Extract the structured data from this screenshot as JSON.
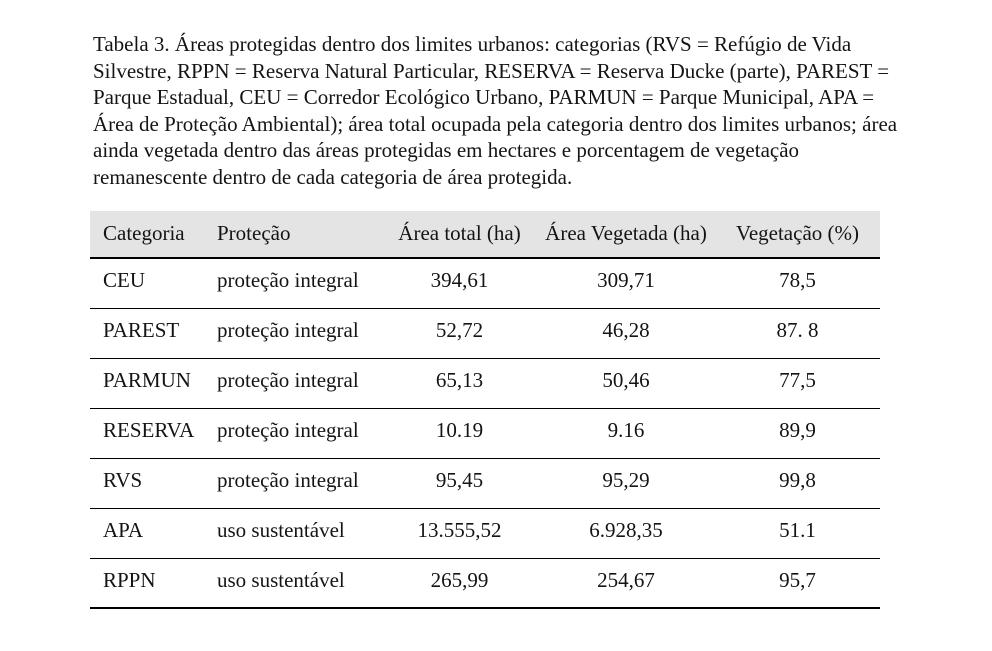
{
  "document": {
    "caption": "Tabela 3. Áreas protegidas dentro dos limites urbanos: categorias (RVS = Refúgio de Vida Silvestre, RPPN = Reserva Natural Particular, RESERVA = Reserva Ducke (parte), PAREST = Parque Estadual, CEU = Corredor Ecológico Urbano, PARMUN = Parque Municipal, APA = Área de Proteção Ambiental); área total ocupada pela categoria dentro dos limites urbanos; área ainda vegetada dentro das áreas protegidas em hectares e porcentagem de vegetação remanescente dentro de cada categoria de área protegida."
  },
  "table": {
    "headers": [
      "Categoria",
      "Proteção",
      "Área total (ha)",
      "Área Vegetada (ha)",
      "Vegetação (%)"
    ],
    "rows": [
      [
        "CEU",
        "proteção integral",
        "394,61",
        "309,71",
        "78,5"
      ],
      [
        "PAREST",
        "proteção integral",
        "52,72",
        "46,28",
        "87. 8"
      ],
      [
        "PARMUN",
        "proteção integral",
        "65,13",
        "50,46",
        "77,5"
      ],
      [
        "RESERVA",
        "proteção integral",
        "10.19",
        "9.16",
        "89,9"
      ],
      [
        "RVS",
        "proteção integral",
        "95,45",
        "95,29",
        "99,8"
      ],
      [
        "APA",
        "uso sustentável",
        "13.555,52",
        "6.928,35",
        "51.1"
      ],
      [
        "RPPN",
        "uso sustentável",
        "265,99",
        "254,67",
        "95,7"
      ]
    ]
  },
  "colors": {
    "header_background": "#e4e4e4",
    "text": "#141414",
    "rule": "#000000",
    "page_background": "#ffffff"
  }
}
